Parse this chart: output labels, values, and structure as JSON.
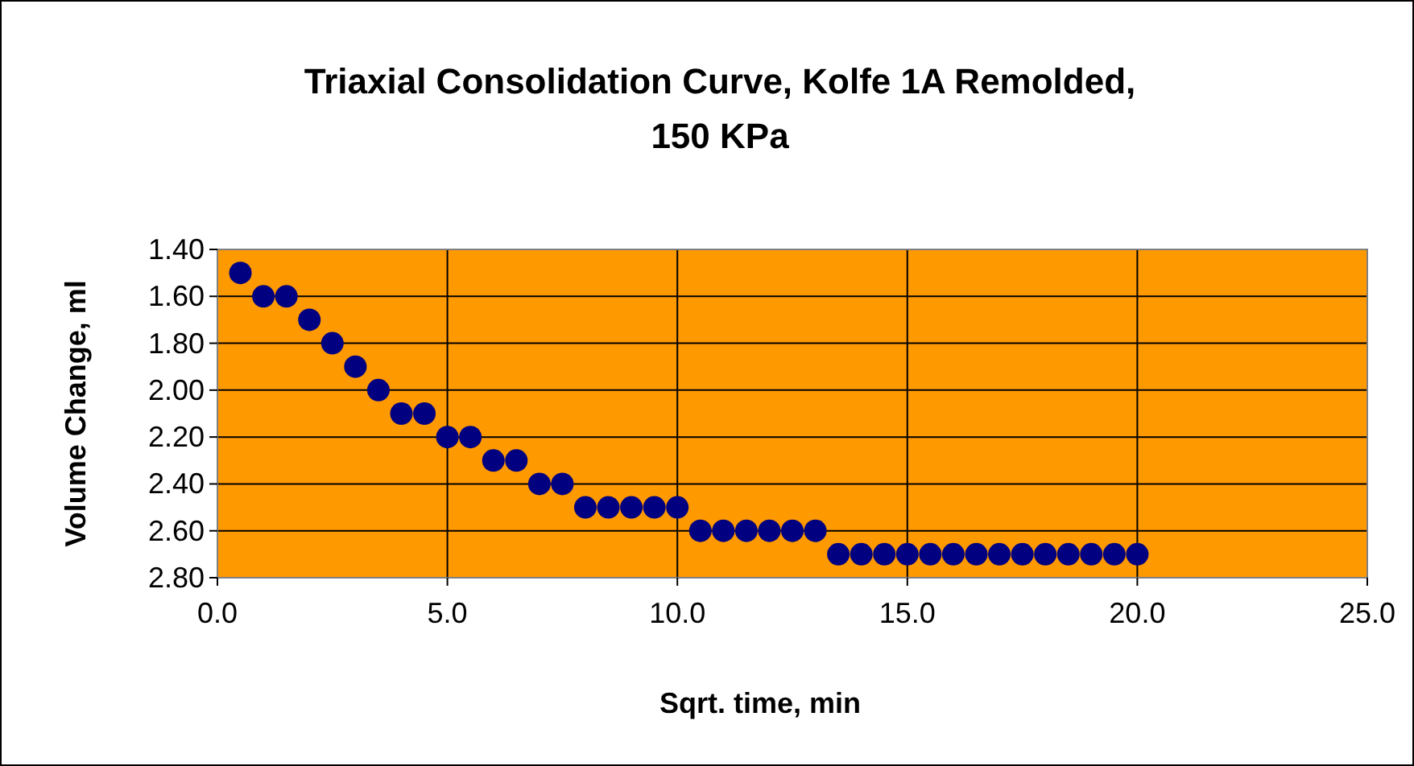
{
  "chart_data": {
    "type": "scatter",
    "title": "Triaxial Consolidation Curve, Kolfe 1A Remolded,\n150 KPa",
    "xlabel": "Sqrt. time, min",
    "ylabel": "Volume Change, ml",
    "x": [
      0.5,
      1,
      1.5,
      2,
      2.5,
      3,
      3.5,
      4,
      4.5,
      5,
      5.5,
      6,
      6.5,
      7,
      7.5,
      8,
      8.5,
      9,
      9.5,
      10,
      10.5,
      11,
      11.5,
      12,
      12.5,
      13,
      13.5,
      14,
      14.5,
      15,
      15.5,
      16,
      16.5,
      17,
      17.5,
      18,
      18.5,
      19,
      19.5,
      20
    ],
    "series": [
      {
        "color": "#000080",
        "values": [
          1.5,
          1.6,
          1.6,
          1.7,
          1.8,
          1.9,
          2.0,
          2.1,
          2.1,
          2.2,
          2.2,
          2.3,
          2.3,
          2.4,
          2.4,
          2.5,
          2.5,
          2.5,
          2.5,
          2.5,
          2.6,
          2.6,
          2.6,
          2.6,
          2.6,
          2.6,
          2.7,
          2.7,
          2.7,
          2.7,
          2.7,
          2.7,
          2.7,
          2.7,
          2.7,
          2.7,
          2.7,
          2.7,
          2.7,
          2.7
        ]
      }
    ],
    "xlim": [
      0,
      25
    ],
    "xticks": [
      {
        "value": 0,
        "label": "0.0"
      },
      {
        "value": 5,
        "label": "5.0"
      },
      {
        "value": 10,
        "label": "10.0"
      },
      {
        "value": 15,
        "label": "15.0"
      },
      {
        "value": 20,
        "label": "20.0"
      },
      {
        "value": 25,
        "label": "25.0"
      }
    ],
    "ylim": [
      2.8,
      1.4
    ],
    "yticks": [
      {
        "value": 1.4,
        "label": "1.40"
      },
      {
        "value": 1.6,
        "label": "1.60"
      },
      {
        "value": 1.8,
        "label": "1.80"
      },
      {
        "value": 2.0,
        "label": "2.00"
      },
      {
        "value": 2.2,
        "label": "2.20"
      },
      {
        "value": 2.4,
        "label": "2.40"
      },
      {
        "value": 2.6,
        "label": "2.60"
      },
      {
        "value": 2.8,
        "label": "2.80"
      }
    ],
    "grid": true,
    "marker": "circle"
  }
}
